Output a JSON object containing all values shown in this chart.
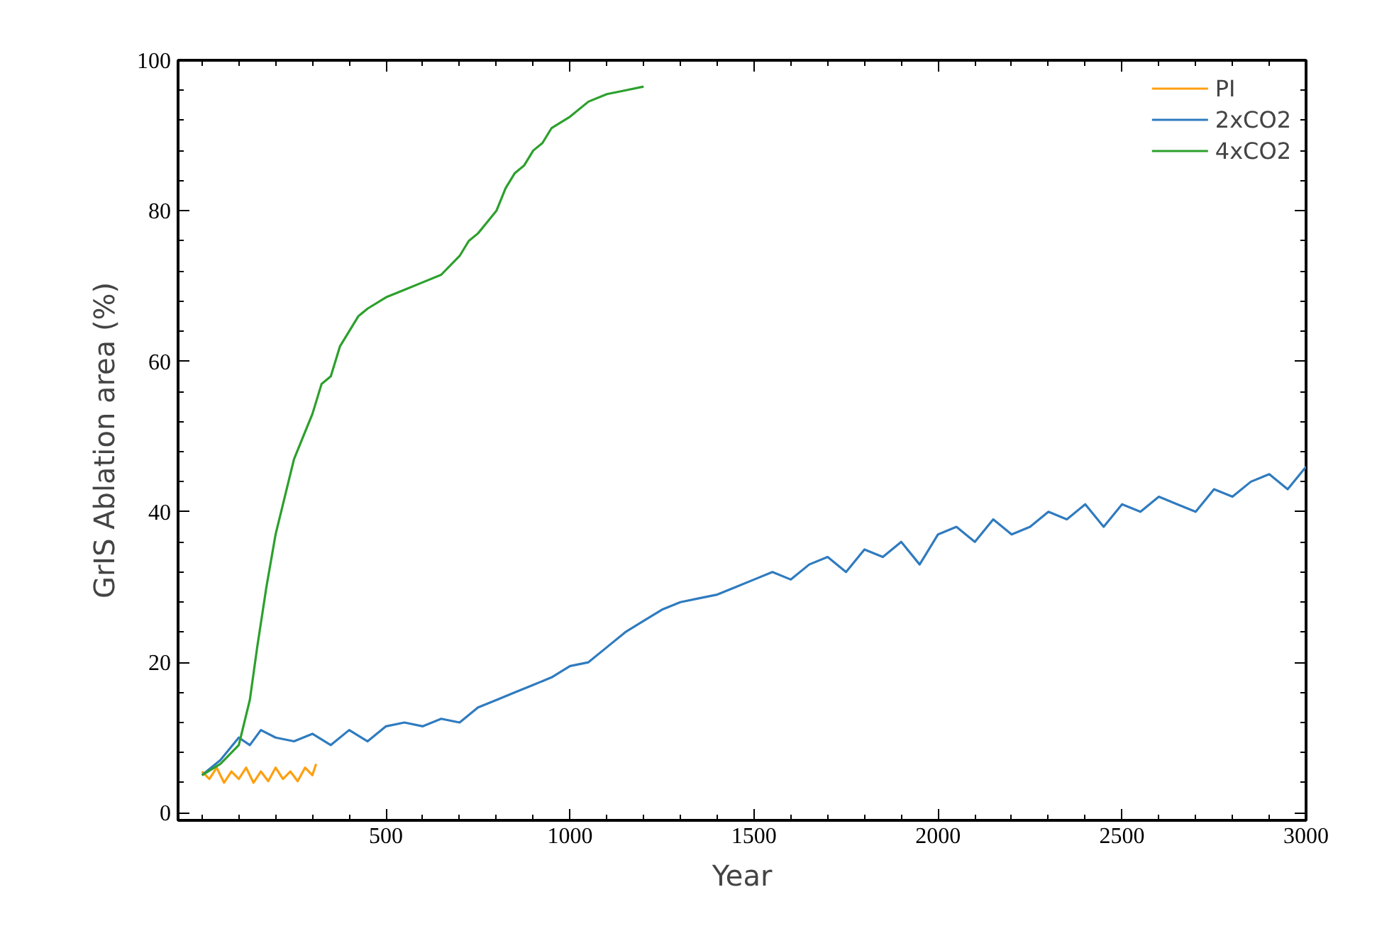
{
  "chart_data": {
    "type": "line",
    "xlabel": "Year",
    "ylabel": "GrIS Ablation area (%)",
    "xlim": [
      -65,
      3000
    ],
    "ylim": [
      -1,
      100
    ],
    "xticks": [
      500,
      1000,
      1500,
      2000,
      2500,
      3000
    ],
    "yticks": [
      0,
      20,
      40,
      60,
      80,
      100
    ],
    "grid": false,
    "legend": "top right",
    "marker": "none",
    "line_style": "solid",
    "series": [
      {
        "name": "PI",
        "color": "#ff9f10",
        "x": [
          0,
          20,
          40,
          60,
          80,
          100,
          120,
          140,
          160,
          180,
          200,
          220,
          240,
          260,
          280,
          300,
          310
        ],
        "values": [
          5.5,
          4.5,
          6,
          4,
          5.5,
          4.5,
          6,
          4,
          5.5,
          4.2,
          6,
          4.5,
          5.5,
          4.2,
          6,
          5,
          6.5
        ]
      },
      {
        "name": "2xCO2",
        "color": "#2f7bbf",
        "x": [
          0,
          50,
          100,
          130,
          160,
          200,
          250,
          300,
          350,
          400,
          450,
          500,
          550,
          600,
          650,
          700,
          750,
          800,
          850,
          900,
          950,
          1000,
          1050,
          1100,
          1150,
          1200,
          1250,
          1300,
          1350,
          1400,
          1450,
          1500,
          1550,
          1600,
          1650,
          1700,
          1750,
          1800,
          1850,
          1900,
          1950,
          2000,
          2050,
          2100,
          2150,
          2200,
          2250,
          2300,
          2350,
          2400,
          2450,
          2500,
          2550,
          2600,
          2650,
          2700,
          2750,
          2800,
          2850,
          2900,
          2950,
          3000
        ],
        "values": [
          5,
          7,
          10,
          9,
          11,
          10,
          9.5,
          10.5,
          9,
          11,
          9.5,
          11.5,
          12,
          11.5,
          12.5,
          12,
          14,
          15,
          16,
          17,
          18,
          19.5,
          20,
          22,
          24,
          25.5,
          27,
          28,
          28.5,
          29,
          30,
          31,
          32,
          31,
          33,
          34,
          32,
          35,
          34,
          36,
          33,
          37,
          38,
          36,
          39,
          37,
          38,
          40,
          39,
          41,
          38,
          41,
          40,
          42,
          41,
          40,
          43,
          42,
          44,
          45,
          43,
          46
        ]
      },
      {
        "name": "4xCO2",
        "color": "#2ca02c",
        "x": [
          0,
          50,
          100,
          130,
          150,
          175,
          200,
          225,
          250,
          275,
          300,
          325,
          350,
          375,
          400,
          425,
          450,
          500,
          550,
          600,
          650,
          700,
          725,
          750,
          775,
          800,
          825,
          850,
          875,
          900,
          925,
          950,
          1000,
          1050,
          1100,
          1150,
          1200
        ],
        "values": [
          5,
          6.5,
          9,
          15,
          22,
          30,
          37,
          42,
          47,
          50,
          53,
          57,
          58,
          62,
          64,
          66,
          67,
          68.5,
          69.5,
          70.5,
          71.5,
          74,
          76,
          77,
          78.5,
          80,
          83,
          85,
          86,
          88,
          89,
          91,
          92.5,
          94.5,
          95.5,
          96,
          96.5
        ]
      }
    ]
  }
}
